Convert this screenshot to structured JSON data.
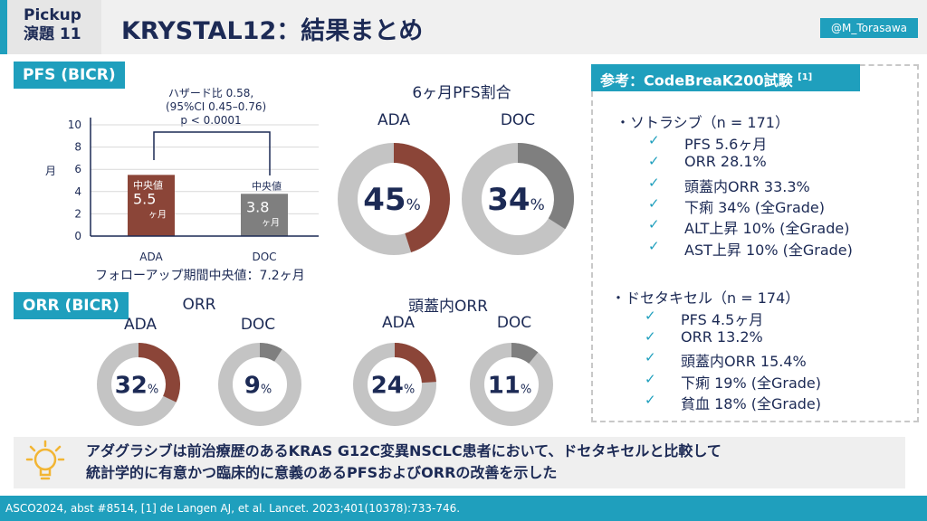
{
  "header": {
    "pickup_line1": "Pickup",
    "pickup_line2": "演題 11",
    "title": "KRYSTAL12：結果まとめ",
    "handle": "@M_Torasawa"
  },
  "pfs": {
    "tag": "PFS (BICR)",
    "hr_line1": "ハザード比 0.58,",
    "hr_line2": "(95%CI 0.45–0.76)",
    "hr_line3": "p < 0.0001",
    "ylabel": "月",
    "median_label": "中央値",
    "unit": "ヶ月",
    "followup": "フォローアップ期間中央値：7.2ヶ月"
  },
  "pfs6_title": "6ヶ月PFS割合",
  "orr": {
    "tag": "ORR (BICR)",
    "title": "ORR",
    "ic_title": "頭蓋内ORR"
  },
  "arms": {
    "ada": "ADA",
    "doc": "DOC"
  },
  "colors": {
    "ada": "#8b4538",
    "doc": "#7f7f7f",
    "rest": "#c4c4c4",
    "accent": "#1f9fbd",
    "navy": "#1c2a55"
  },
  "chart_data": [
    {
      "type": "bar",
      "title": "PFS (BICR)",
      "categories": [
        "ADA",
        "DOC"
      ],
      "values": [
        5.5,
        3.8
      ],
      "ylabel": "月",
      "ylim": [
        0,
        10
      ],
      "yticks": [
        0,
        2,
        4,
        6,
        8,
        10
      ],
      "grid": true
    },
    {
      "type": "pie",
      "title": "6ヶ月PFS割合",
      "categories": [
        "ADA",
        "DOC"
      ],
      "values": [
        45,
        34
      ],
      "unit": "%"
    },
    {
      "type": "pie",
      "title": "ORR",
      "categories": [
        "ADA",
        "DOC"
      ],
      "values": [
        32,
        9
      ],
      "unit": "%"
    },
    {
      "type": "pie",
      "title": "頭蓋内ORR",
      "categories": [
        "ADA",
        "DOC"
      ],
      "values": [
        24,
        11
      ],
      "unit": "%"
    }
  ],
  "ref": {
    "title": "参考：CodeBreaK200試験",
    "sup": "[1]",
    "groups": [
      {
        "head": "・ソトラシブ（n = 171）",
        "items": [
          "PFS 5.6ヶ月",
          "ORR 28.1%",
          "頭蓋内ORR 33.3%",
          "下痢 34% (全Grade)",
          "ALT上昇 10% (全Grade)",
          "AST上昇 10% (全Grade)"
        ]
      },
      {
        "head": "・ドセタキセル（n = 174）",
        "items": [
          "PFS 4.5ヶ月",
          "ORR 13.2%",
          "頭蓋内ORR 15.4%",
          "下痢 19% (全Grade)",
          "貧血 18% (全Grade)"
        ]
      }
    ]
  },
  "banner": {
    "line1": "アダグラシブは前治療歴のあるKRAS G12C変異NSCLC患者において、ドセタキセルと比較して",
    "line2": "統計学的に有意かつ臨床的に意義のあるPFSおよびORRの改善を示した"
  },
  "footer": {
    "text": "ASCO2024, abst #8514, [1] de Langen AJ, et al. Lancet. 2023;401(10378):733-746."
  }
}
